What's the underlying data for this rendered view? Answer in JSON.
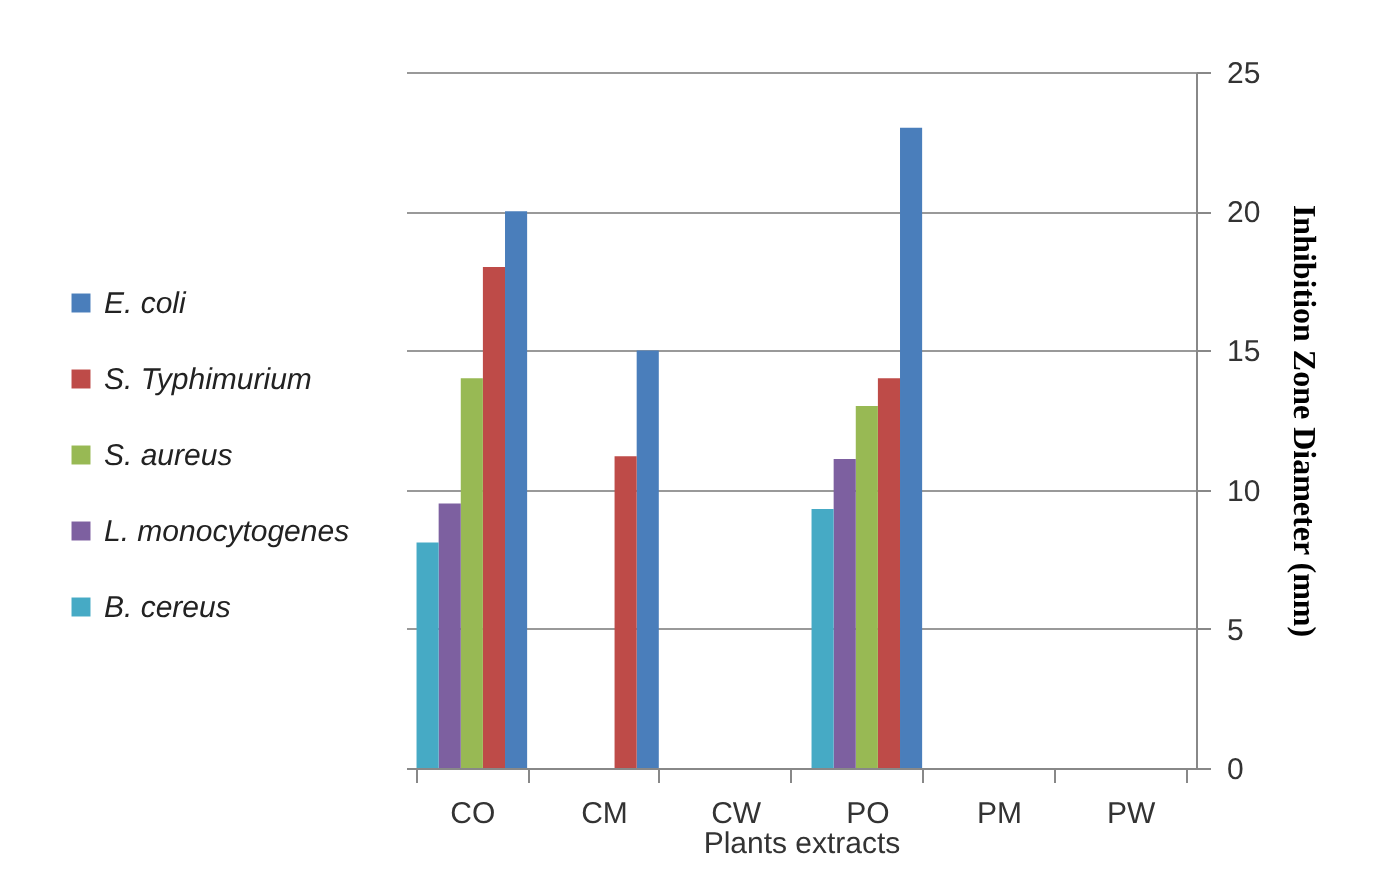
{
  "chart_data": {
    "type": "bar",
    "xlabel": "Plants extracts",
    "ylabel": "Inhibition  Zone Diameter (mm)",
    "categories": [
      "CO",
      "CM",
      "CW",
      "PO",
      "PM",
      "PW"
    ],
    "series": [
      {
        "name": "E. coli",
        "color": "#4a7ebb",
        "values": [
          20,
          15,
          null,
          23,
          null,
          null
        ]
      },
      {
        "name": "S. Typhimurium",
        "color": "#be4b48",
        "values": [
          18,
          11.2,
          null,
          14,
          null,
          null
        ]
      },
      {
        "name": "S. aureus",
        "color": "#98b954",
        "values": [
          14,
          null,
          null,
          13,
          null,
          null
        ]
      },
      {
        "name": "L. monocytogenes",
        "color": "#7d60a0",
        "values": [
          9.5,
          null,
          null,
          11.1,
          null,
          null
        ]
      },
      {
        "name": "B. cereus",
        "color": "#46aac5",
        "values": [
          8.1,
          null,
          null,
          9.3,
          null,
          null
        ]
      }
    ],
    "ylim": [
      0,
      25
    ],
    "yticks": [
      0,
      5,
      10,
      15,
      20,
      25
    ],
    "grid": "y",
    "legend": "left"
  }
}
